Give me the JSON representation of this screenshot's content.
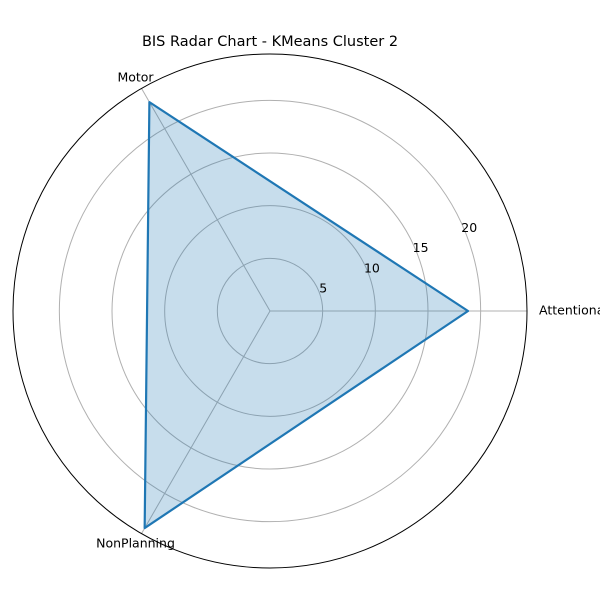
{
  "chart_data": {
    "type": "radar",
    "title": "BIS Radar Chart - KMeans Cluster 2",
    "categories": [
      "Attentional",
      "Motor",
      "NonPlanning"
    ],
    "series": [
      {
        "values": [
          18.8,
          22.9,
          23.8
        ],
        "color": "#1f77b4"
      }
    ],
    "radial_ticks": [
      5,
      10,
      15,
      20
    ],
    "r_max": 24.4,
    "grid": true,
    "gridline_color": "#b0b0b0",
    "fill_opacity": 0.25
  }
}
